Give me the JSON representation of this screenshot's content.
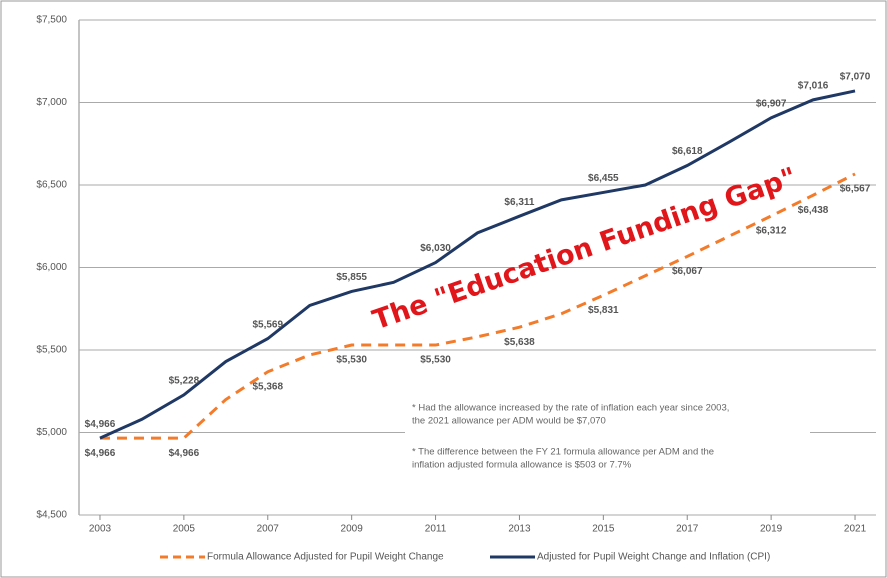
{
  "chart_data": {
    "type": "line",
    "annotation": "The \"Education Funding Gap\"",
    "notes": [
      [
        "* Had the allowance increased by the rate of inflation each year since 2003,",
        "the 2021 allowance per ADM would be $7,070"
      ],
      [
        "* The difference  between  the FY 21 formula allowance per ADM and the",
        "inflation adjusted formula allowance is $503 or 7.7%"
      ]
    ],
    "x": [
      2003,
      2004,
      2005,
      2006,
      2007,
      2008,
      2009,
      2010,
      2011,
      2012,
      2013,
      2014,
      2015,
      2016,
      2017,
      2018,
      2019,
      2020,
      2021
    ],
    "series": [
      {
        "name": "Formula Allowance Adjusted for Pupil Weight Change",
        "color": "#f47b2a",
        "dashed": true,
        "label_side": "below",
        "values": [
          4966,
          4966,
          4966,
          5200,
          5368,
          5470,
          5530,
          5530,
          5530,
          5580,
          5638,
          5720,
          5831,
          5950,
          6067,
          6190,
          6312,
          6438,
          6567
        ],
        "value_labels": [
          "$4,966",
          null,
          "$4,966",
          null,
          "$5,368",
          null,
          "$5,530",
          null,
          "$5,530",
          null,
          "$5,638",
          null,
          "$5,831",
          null,
          "$6,067",
          null,
          "$6,312",
          "$6,438",
          "$6,567"
        ]
      },
      {
        "name": "Adjusted for Pupil Weight Change and Inflation (CPI)",
        "color": "#1f3864",
        "dashed": false,
        "label_side": "above",
        "values": [
          4966,
          5080,
          5228,
          5430,
          5569,
          5770,
          5855,
          5910,
          6030,
          6210,
          6311,
          6410,
          6455,
          6500,
          6618,
          6760,
          6907,
          7016,
          7070
        ],
        "value_labels": [
          "$4,966",
          null,
          "$5,228",
          null,
          "$5,569",
          null,
          "$5,855",
          null,
          "$6,030",
          null,
          "$6,311",
          null,
          "$6,455",
          null,
          "$6,618",
          null,
          "$6,907",
          "$7,016",
          "$7,070"
        ]
      }
    ],
    "xlim": [
      2002.5,
      2021.5
    ],
    "xticks": [
      2003,
      2005,
      2007,
      2009,
      2011,
      2013,
      2015,
      2017,
      2019,
      2021
    ],
    "ylim": [
      4500,
      7500
    ],
    "yticks": [
      {
        "value": 4500,
        "label": "$4,500"
      },
      {
        "value": 5000,
        "label": "$5,000"
      },
      {
        "value": 5500,
        "label": "$5,500"
      },
      {
        "value": 6000,
        "label": "$6,000"
      },
      {
        "value": 6500,
        "label": "$6,500"
      },
      {
        "value": 7000,
        "label": "$7,000"
      },
      {
        "value": 7500,
        "label": "$7,500"
      }
    ],
    "grid": true,
    "legend": "bottom"
  }
}
